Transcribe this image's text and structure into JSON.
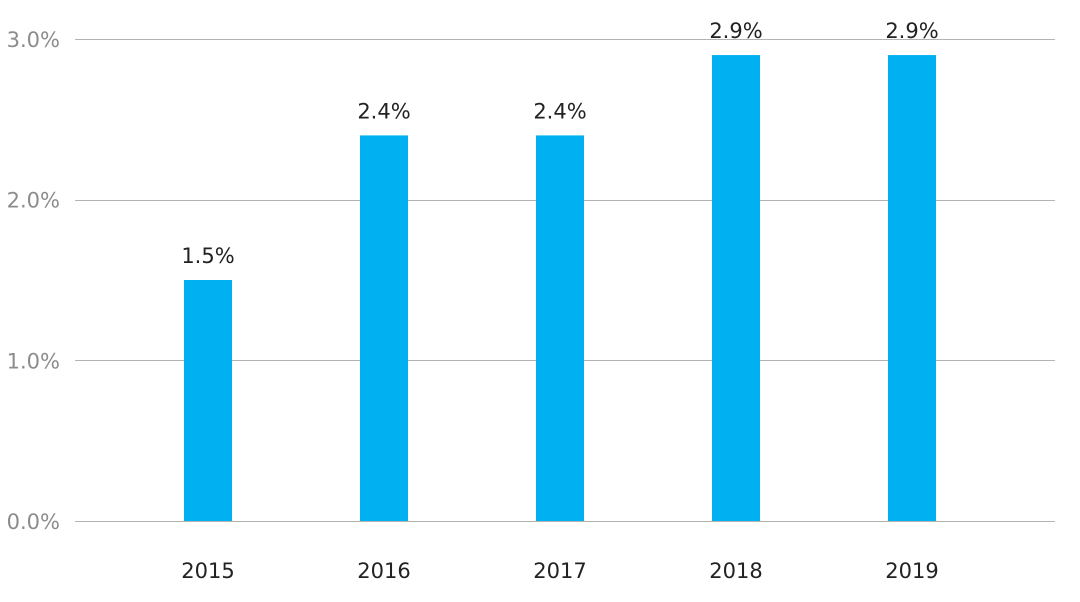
{
  "chart_data": {
    "type": "bar",
    "title": "",
    "xlabel": "",
    "ylabel": "",
    "categories": [
      "2015",
      "2016",
      "2017",
      "2018",
      "2019"
    ],
    "values": [
      1.5,
      2.4,
      2.4,
      2.9,
      2.9
    ],
    "data_labels": [
      "1.5%",
      "2.4%",
      "2.4%",
      "2.9%",
      "2.9%"
    ],
    "ylim": [
      0,
      3
    ],
    "yticks": [
      0,
      1,
      2,
      3
    ],
    "ytick_labels": [
      "0.0%",
      "1.0%",
      "2.0%",
      "3.0%"
    ],
    "grid": true,
    "legend": "none",
    "bar_color": "#00b0f0"
  }
}
